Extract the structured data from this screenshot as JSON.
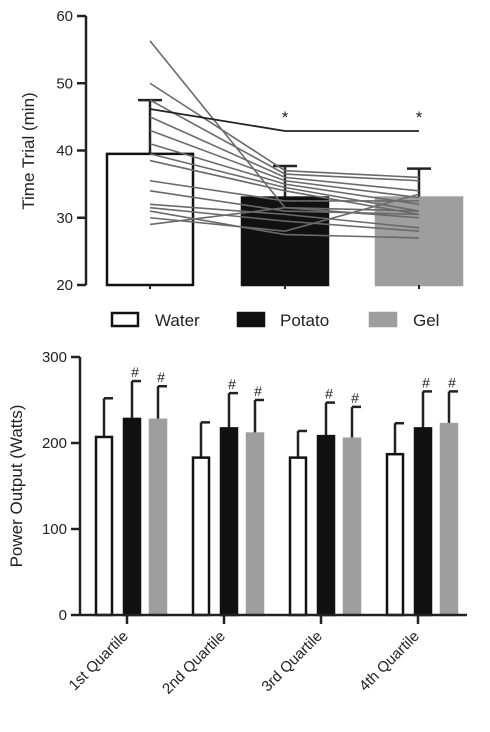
{
  "colors": {
    "water": "#ffffff",
    "potato": "#111111",
    "gel": "#9e9e9e",
    "ink": "#222222"
  },
  "legend": {
    "items": [
      "Water",
      "Potato",
      "Gel"
    ]
  },
  "chart_data": [
    {
      "type": "bar",
      "ylabel": "Time Trial (min)",
      "ylim": [
        20,
        60
      ],
      "yticks": [
        "20",
        "30",
        "40",
        "50",
        "60"
      ],
      "categories": [
        "Water",
        "Potato",
        "Gel"
      ],
      "values": [
        39.5,
        33.0,
        33.0
      ],
      "errors": [
        8.0,
        4.7,
        4.3
      ],
      "significance": [
        "",
        "*",
        "*"
      ],
      "individual_lines": [
        [
          56.3,
          31.5,
          31.0
        ],
        [
          50.0,
          37.0,
          36.0
        ],
        [
          47.5,
          36.5,
          35.5
        ],
        [
          45.0,
          36.0,
          34.0
        ],
        [
          43.0,
          35.5,
          33.0
        ],
        [
          41.0,
          35.0,
          32.0
        ],
        [
          39.5,
          34.5,
          31.0
        ],
        [
          38.5,
          34.0,
          30.5
        ],
        [
          35.5,
          32.5,
          32.5
        ],
        [
          34.0,
          31.0,
          30.5
        ],
        [
          32.0,
          30.5,
          28.5
        ],
        [
          31.5,
          29.5,
          28.0
        ],
        [
          31.0,
          27.5,
          27.0
        ],
        [
          30.0,
          28.0,
          33.5
        ],
        [
          29.0,
          31.5,
          30.0
        ]
      ],
      "grid": false
    },
    {
      "type": "bar",
      "ylabel": "Power Output (Watts)",
      "ylim": [
        0,
        300
      ],
      "yticks": [
        "0",
        "100",
        "200",
        "300"
      ],
      "categories": [
        "1st Quartile",
        "2nd Quartile",
        "3rd Quartile",
        "4th Quartile"
      ],
      "series": [
        {
          "name": "Water",
          "values": [
            207,
            183,
            183,
            187
          ],
          "errors": [
            45,
            41,
            31,
            36
          ],
          "marks": [
            "",
            "",
            "",
            ""
          ]
        },
        {
          "name": "Potato",
          "values": [
            228,
            217,
            208,
            217
          ],
          "errors": [
            44,
            41,
            39,
            43
          ],
          "marks": [
            "#",
            "#",
            "#",
            "#"
          ]
        },
        {
          "name": "Gel",
          "values": [
            227,
            211,
            205,
            222
          ],
          "errors": [
            39,
            39,
            37,
            38
          ],
          "marks": [
            "#",
            "#",
            "#",
            "#"
          ]
        }
      ],
      "grid": false
    }
  ]
}
